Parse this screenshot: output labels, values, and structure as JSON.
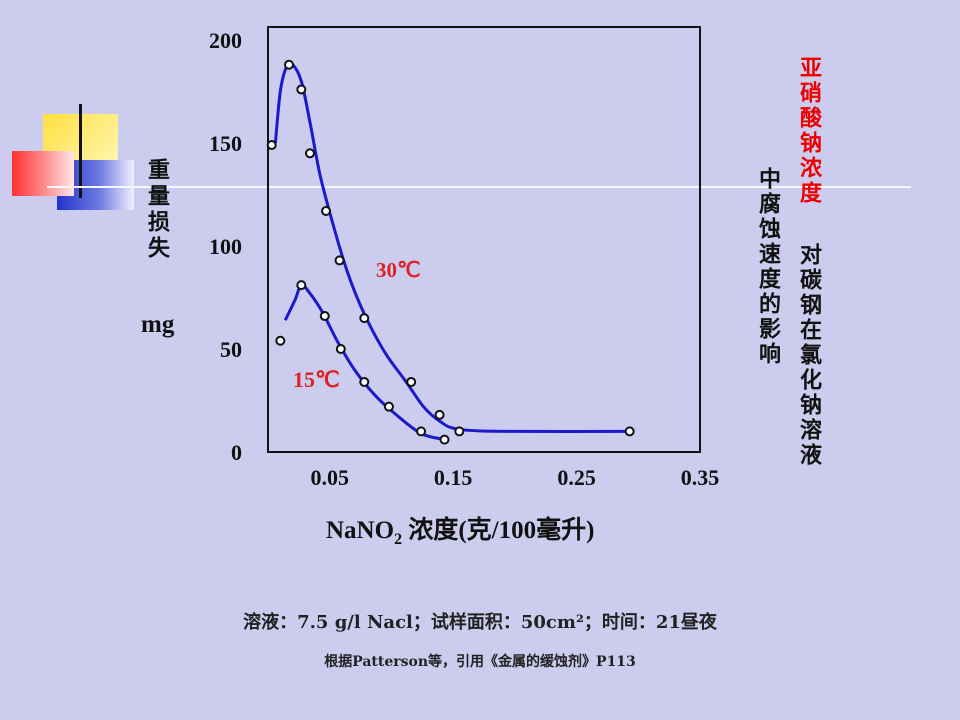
{
  "chart_data": {
    "type": "line",
    "xlabel_prefix": "NaNO",
    "xlabel_sub": "2",
    "xlabel_suffix": " 浓度(克/100毫升)",
    "ylabel": "重量损失",
    "ylabel_unit": "mg",
    "title_red": "亚硝酸钠浓度",
    "title_black": "对碳钢在氯化钠溶液",
    "title_col2": "中腐蚀速度的影响",
    "xlim": [
      0.0,
      0.35
    ],
    "ylim": [
      0,
      200
    ],
    "x_ticks": [
      "0.05",
      "0.15",
      "0.25",
      "0.35"
    ],
    "y_ticks": [
      "200",
      "150",
      "100",
      "50",
      "0"
    ],
    "grid": false,
    "series": [
      {
        "name": "30℃",
        "color": "#1a1acc",
        "points": [
          [
            0.003,
            149
          ],
          [
            0.017,
            188
          ],
          [
            0.027,
            176
          ],
          [
            0.034,
            145
          ],
          [
            0.047,
            117
          ],
          [
            0.058,
            93
          ],
          [
            0.078,
            65
          ],
          [
            0.116,
            34
          ],
          [
            0.139,
            18
          ],
          [
            0.155,
            10
          ],
          [
            0.293,
            10
          ]
        ],
        "curve": [
          [
            0.006,
            150
          ],
          [
            0.01,
            175
          ],
          [
            0.015,
            187
          ],
          [
            0.02,
            188
          ],
          [
            0.027,
            180
          ],
          [
            0.034,
            160
          ],
          [
            0.042,
            135
          ],
          [
            0.052,
            112
          ],
          [
            0.064,
            88
          ],
          [
            0.078,
            67
          ],
          [
            0.095,
            48
          ],
          [
            0.112,
            34
          ],
          [
            0.126,
            22
          ],
          [
            0.139,
            15
          ],
          [
            0.155,
            11
          ],
          [
            0.2,
            10
          ],
          [
            0.293,
            10
          ]
        ]
      },
      {
        "name": "15℃",
        "color": "#1a1acc",
        "points": [
          [
            0.01,
            54
          ],
          [
            0.027,
            81
          ],
          [
            0.046,
            66
          ],
          [
            0.059,
            50
          ],
          [
            0.078,
            34
          ],
          [
            0.098,
            22
          ],
          [
            0.124,
            10
          ],
          [
            0.143,
            6
          ]
        ],
        "curve": [
          [
            0.014,
            64
          ],
          [
            0.022,
            74
          ],
          [
            0.027,
            81
          ],
          [
            0.034,
            77
          ],
          [
            0.044,
            68
          ],
          [
            0.056,
            54
          ],
          [
            0.07,
            40
          ],
          [
            0.086,
            28
          ],
          [
            0.104,
            18
          ],
          [
            0.124,
            9
          ],
          [
            0.143,
            6
          ]
        ]
      }
    ]
  },
  "note1": "溶液：7.5 g/l Nacl；试样面积：50cm²；时间：21昼夜",
  "note2": "根据Patterson等，引用《金属的缓蚀剂》P113"
}
